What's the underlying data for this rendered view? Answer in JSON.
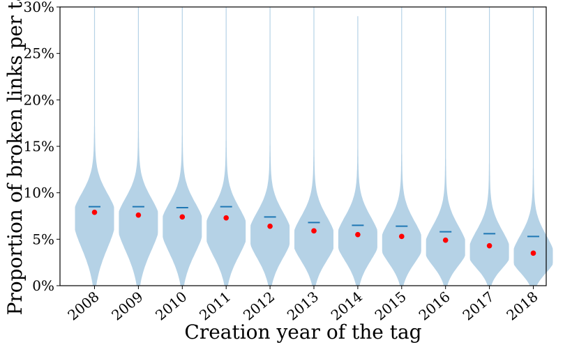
{
  "chart_data": {
    "type": "violin",
    "xlabel": "Creation year of the tag",
    "ylabel": "Proportion of broken links per tag",
    "ylim": [
      0,
      30
    ],
    "yunit": "%",
    "yticks": [
      0,
      5,
      10,
      15,
      20,
      25,
      30
    ],
    "ytick_labels": [
      "0%",
      "5%",
      "10%",
      "15%",
      "20%",
      "25%",
      "30%"
    ],
    "categories": [
      "2008",
      "2009",
      "2010",
      "2011",
      "2012",
      "2013",
      "2014",
      "2015",
      "2016",
      "2017",
      "2018"
    ],
    "median": [
      7.9,
      7.6,
      7.4,
      7.3,
      6.4,
      5.9,
      5.5,
      5.3,
      4.9,
      4.3,
      3.5
    ],
    "mean": [
      8.5,
      8.5,
      8.4,
      8.5,
      7.4,
      6.8,
      6.5,
      6.4,
      5.8,
      5.6,
      5.3
    ],
    "violin_max": [
      30,
      30,
      30,
      30,
      30,
      30,
      29,
      30,
      30,
      30,
      30
    ],
    "violin_mode": [
      7.5,
      7.0,
      6.5,
      6.0,
      5.5,
      5.0,
      5.0,
      4.5,
      4.0,
      3.5,
      3.0
    ],
    "colors": {
      "violin": "#b5d2e6",
      "mean_line": "#1f77b4",
      "median_dot": "#ff0000",
      "axis": "#000000"
    }
  }
}
